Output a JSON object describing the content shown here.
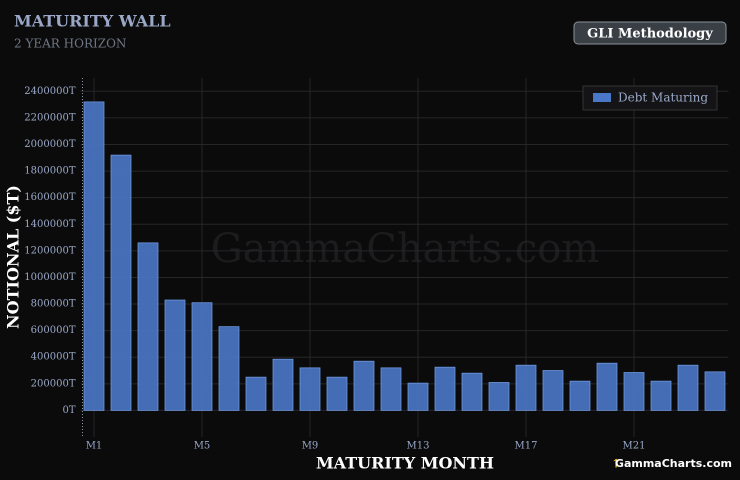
{
  "chart_data": {
    "type": "bar",
    "title": "MATURITY WALL",
    "subtitle": "2 YEAR HORIZON",
    "x_label": "MATURITY MONTH",
    "y_label": "NOTIONAL ($T)",
    "categories": [
      "M1",
      null,
      null,
      null,
      "M5",
      null,
      null,
      null,
      "M9",
      null,
      null,
      null,
      "M13",
      null,
      null,
      null,
      "M17",
      null,
      null,
      null,
      "M21",
      null,
      null,
      null
    ],
    "series": [
      {
        "name": "Debt Maturing",
        "color": "#4a78c8",
        "values": [
          2320000,
          1920000,
          1260000,
          830000,
          810000,
          630000,
          250000,
          385000,
          320000,
          250000,
          370000,
          320000,
          205000,
          325000,
          280000,
          210000,
          340000,
          300000,
          220000,
          355000,
          285000,
          220000,
          340000,
          290000
        ]
      }
    ],
    "ylim": [
      -200000,
      2500000
    ],
    "yticks": [
      {
        "value": 0,
        "label": "0T"
      },
      {
        "value": 200000,
        "label": "200000T"
      },
      {
        "value": 400000,
        "label": "400000T"
      },
      {
        "value": 600000,
        "label": "600000T"
      },
      {
        "value": 800000,
        "label": "800000T"
      },
      {
        "value": 1000000,
        "label": "1000000T"
      },
      {
        "value": 1200000,
        "label": "1200000T"
      },
      {
        "value": 1400000,
        "label": "1400000T"
      },
      {
        "value": 1600000,
        "label": "1600000T"
      },
      {
        "value": 1800000,
        "label": "1800000T"
      },
      {
        "value": 2000000,
        "label": "2000000T"
      },
      {
        "value": 2200000,
        "label": "2200000T"
      },
      {
        "value": 2400000,
        "label": "2400000T"
      }
    ],
    "grid": true,
    "legend": "upper right"
  },
  "button": "GLI Methodology",
  "watermark": "GammaCharts.com",
  "brand": "GammaCharts.com"
}
